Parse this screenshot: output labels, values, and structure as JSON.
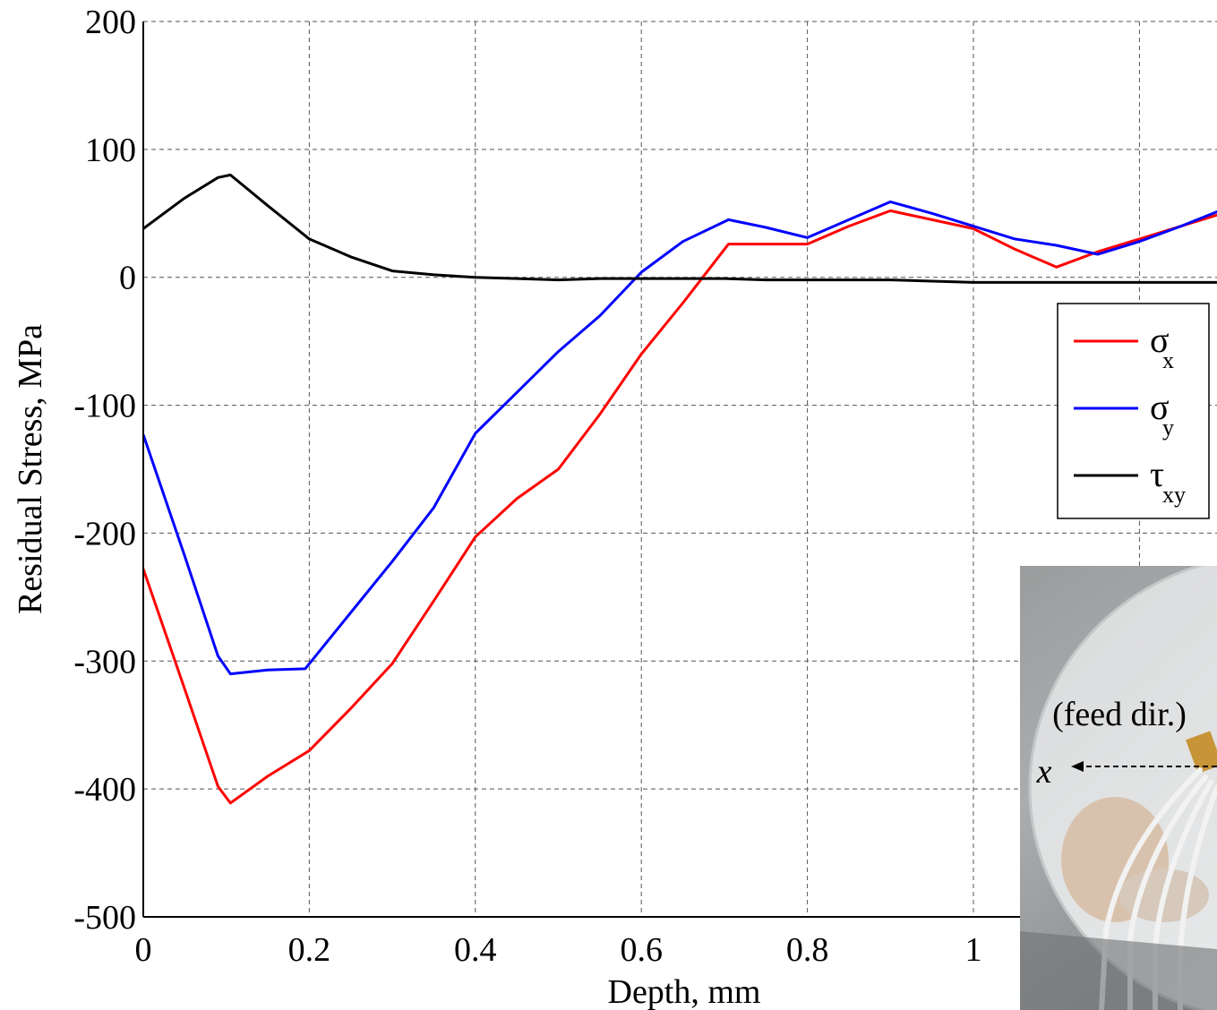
{
  "chart_data": {
    "type": "line",
    "title": "",
    "xlabel": "Depth, mm",
    "ylabel": "Residual Stress, MPa",
    "xlim": [
      0,
      1.3
    ],
    "ylim": [
      -500,
      200
    ],
    "xticks": [
      0,
      0.2,
      0.4,
      0.6,
      0.8,
      1
    ],
    "xtick_labels": [
      "0",
      "0.2",
      "0.4",
      "0.6",
      "0.8",
      "1"
    ],
    "yticks": [
      200,
      100,
      0,
      -100,
      -200,
      -300,
      -400,
      -500
    ],
    "ytick_labels": [
      "200",
      "100",
      "0",
      "-100",
      "-200",
      "-300",
      "-400",
      "-500"
    ],
    "grid": true,
    "legend_position": "right",
    "series": [
      {
        "name": "σx",
        "name_main": "σ",
        "name_sub": "x",
        "color": "#ff0000",
        "x": [
          0,
          0.05,
          0.09,
          0.105,
          0.15,
          0.2,
          0.25,
          0.3,
          0.35,
          0.4,
          0.45,
          0.5,
          0.55,
          0.6,
          0.65,
          0.705,
          0.75,
          0.8,
          0.85,
          0.9,
          0.95,
          1.0,
          1.05,
          1.1,
          1.15,
          1.2,
          1.25,
          1.3
        ],
        "values": [
          -228,
          -322,
          -398,
          -411,
          -390,
          -370,
          -337,
          -302,
          -253,
          -203,
          -173,
          -150,
          -107,
          -60,
          -20,
          26,
          26,
          26,
          40,
          52,
          45,
          38,
          22,
          8,
          20,
          30,
          40,
          50
        ]
      },
      {
        "name": "σy",
        "name_main": "σ",
        "name_sub": "y",
        "color": "#0000ff",
        "x": [
          0,
          0.05,
          0.09,
          0.105,
          0.15,
          0.195,
          0.25,
          0.3,
          0.35,
          0.4,
          0.45,
          0.5,
          0.55,
          0.6,
          0.65,
          0.705,
          0.75,
          0.8,
          0.85,
          0.9,
          0.95,
          1.0,
          1.05,
          1.1,
          1.15,
          1.2,
          1.25,
          1.3
        ],
        "values": [
          -123,
          -218,
          -296,
          -310,
          -307,
          -306,
          -262,
          -222,
          -180,
          -122,
          -90,
          -58,
          -30,
          4,
          28,
          45,
          39,
          31,
          45,
          59,
          50,
          40,
          30,
          25,
          18,
          28,
          40,
          53
        ]
      },
      {
        "name": "τxy",
        "name_main": "τ",
        "name_sub": "xy",
        "color": "#000000",
        "x": [
          0,
          0.05,
          0.09,
          0.105,
          0.15,
          0.2,
          0.25,
          0.3,
          0.35,
          0.4,
          0.45,
          0.5,
          0.55,
          0.6,
          0.65,
          0.7,
          0.75,
          0.8,
          0.85,
          0.9,
          0.95,
          1.0,
          1.05,
          1.1,
          1.15,
          1.2,
          1.25,
          1.3
        ],
        "values": [
          38,
          62,
          78,
          80,
          56,
          30,
          16,
          5,
          2,
          0,
          -1,
          -2,
          -1,
          -1,
          -1,
          -1,
          -2,
          -2,
          -2,
          -2,
          -3,
          -4,
          -4,
          -4,
          -4,
          -4,
          -4,
          -4
        ]
      }
    ]
  },
  "inset": {
    "label_feed": "(feed dir.)",
    "label_axis": "x"
  }
}
